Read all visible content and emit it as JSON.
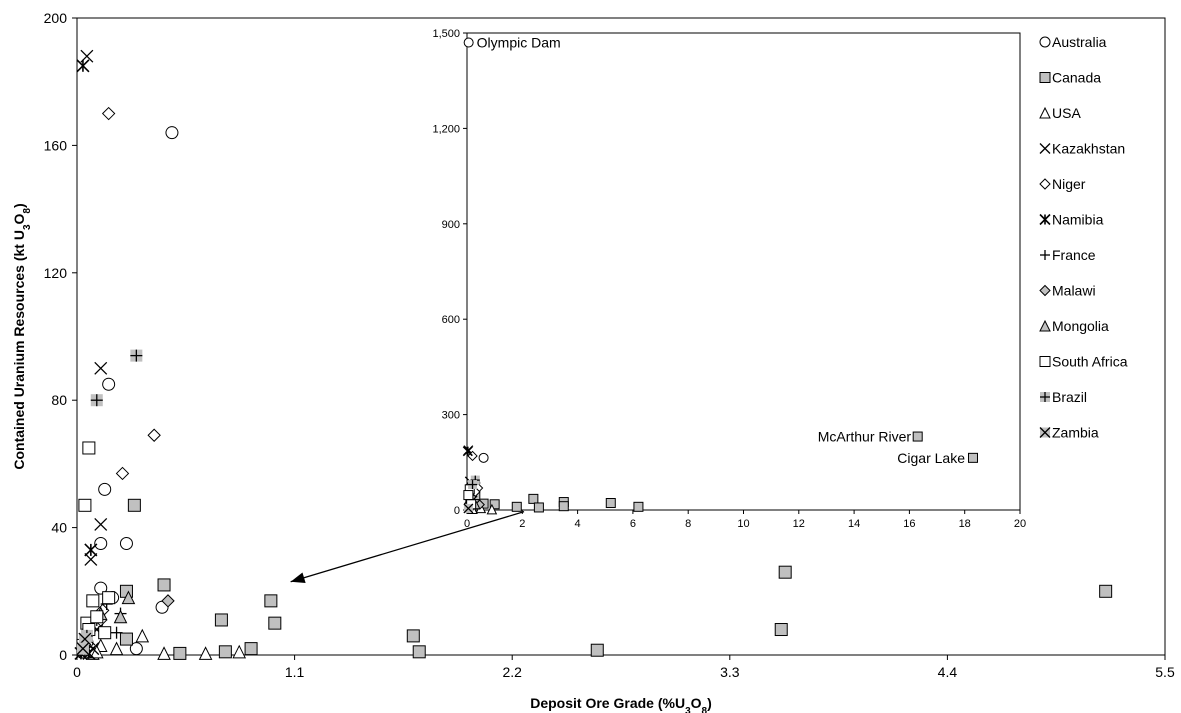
{
  "chart_data": [
    {
      "id": "main",
      "type": "scatter",
      "xlabel_parts": [
        "Deposit Ore Grade (%U",
        "3",
        "O",
        "8",
        ")"
      ],
      "ylabel_parts": [
        "Contained Uranium Resources (kt U",
        "3",
        "O",
        "8",
        ")"
      ],
      "xlim": [
        0,
        5.5
      ],
      "ylim": [
        0,
        200
      ],
      "xticks": [
        0,
        1.1,
        2.2,
        3.3,
        4.4,
        5.5
      ],
      "xtick_labels": [
        "0",
        "1.1",
        "2.2",
        "3.3",
        "4.4",
        "5.5"
      ],
      "yticks": [
        0,
        40,
        80,
        120,
        160,
        200
      ],
      "ytick_labels": [
        "0",
        "40",
        "80",
        "120",
        "160",
        "200"
      ],
      "series": [
        {
          "name": "Australia",
          "marker": "circle",
          "points": [
            [
              0.48,
              164
            ],
            [
              0.16,
              85
            ],
            [
              0.14,
              52
            ],
            [
              0.12,
              35
            ],
            [
              0.25,
              35
            ],
            [
              0.12,
              21
            ],
            [
              0.18,
              18
            ],
            [
              0.43,
              15
            ],
            [
              0.3,
              2
            ],
            [
              0.05,
              4
            ],
            [
              0.1,
              10
            ]
          ]
        },
        {
          "name": "Canada",
          "marker": "square",
          "points": [
            [
              3.58,
              26
            ],
            [
              5.2,
              20
            ],
            [
              0.29,
              47
            ],
            [
              0.44,
              22
            ],
            [
              0.25,
              20
            ],
            [
              0.98,
              17
            ],
            [
              0.73,
              11
            ],
            [
              1.0,
              10
            ],
            [
              1.7,
              6
            ],
            [
              3.56,
              8
            ],
            [
              0.25,
              5
            ],
            [
              0.52,
              0.5
            ],
            [
              0.75,
              1
            ],
            [
              0.88,
              2
            ],
            [
              1.73,
              1
            ],
            [
              2.63,
              1.5
            ]
          ]
        },
        {
          "name": "USA",
          "marker": "triangle",
          "points": [
            [
              0.33,
              6
            ],
            [
              0.44,
              0.5
            ],
            [
              0.65,
              0.5
            ],
            [
              0.82,
              1
            ],
            [
              0.12,
              3
            ],
            [
              0.2,
              2
            ],
            [
              0.05,
              1
            ],
            [
              0.08,
              0.5
            ],
            [
              0.1,
              1
            ]
          ]
        },
        {
          "name": "Kazakhstan",
          "marker": "x",
          "points": [
            [
              0.05,
              188
            ],
            [
              0.12,
              90
            ],
            [
              0.12,
              41
            ],
            [
              0.07,
              30
            ],
            [
              0.1,
              8
            ],
            [
              0.06,
              5
            ],
            [
              0.04,
              3
            ],
            [
              0.08,
              2
            ]
          ]
        },
        {
          "name": "Niger",
          "marker": "diamond",
          "points": [
            [
              0.16,
              170
            ],
            [
              0.39,
              69
            ],
            [
              0.23,
              57
            ],
            [
              0.12,
              11
            ],
            [
              0.13,
              14
            ]
          ]
        },
        {
          "name": "Namibia",
          "marker": "asterisk",
          "points": [
            [
              0.03,
              185
            ],
            [
              0.07,
              33
            ],
            [
              0.04,
              1
            ],
            [
              0.02,
              0.5
            ],
            [
              0.06,
              0.5
            ]
          ]
        },
        {
          "name": "France",
          "marker": "plus",
          "points": [
            [
              0.22,
              13
            ],
            [
              0.1,
              11
            ],
            [
              0.15,
              16
            ],
            [
              0.2,
              7
            ]
          ]
        },
        {
          "name": "Malawi",
          "marker": "diamond-filled",
          "points": [
            [
              0.46,
              17
            ]
          ]
        },
        {
          "name": "Mongolia",
          "marker": "triangle-filled",
          "points": [
            [
              0.26,
              18
            ],
            [
              0.22,
              12
            ],
            [
              0.12,
              13
            ]
          ]
        },
        {
          "name": "South Africa",
          "marker": "square-open",
          "points": [
            [
              0.06,
              65
            ],
            [
              0.04,
              47
            ],
            [
              0.08,
              17
            ],
            [
              0.16,
              18
            ],
            [
              0.05,
              10
            ],
            [
              0.1,
              12
            ],
            [
              0.03,
              3
            ],
            [
              0.06,
              8
            ],
            [
              0.14,
              7
            ]
          ]
        },
        {
          "name": "Brazil",
          "marker": "plus-square",
          "points": [
            [
              0.3,
              94
            ],
            [
              0.1,
              80
            ],
            [
              0.05,
              6
            ]
          ]
        },
        {
          "name": "Zambia",
          "marker": "x-square",
          "points": [
            [
              0.04,
              5
            ],
            [
              0.03,
              2
            ]
          ]
        }
      ],
      "annotation": {
        "type": "arrow",
        "from": [
          2.26,
          45
        ],
        "to": [
          1.08,
          23
        ]
      }
    },
    {
      "id": "inset",
      "type": "scatter",
      "xlim": [
        0,
        20
      ],
      "ylim": [
        0,
        1500
      ],
      "xticks": [
        0,
        2,
        4,
        6,
        8,
        10,
        12,
        14,
        16,
        18,
        20
      ],
      "xtick_labels": [
        "0",
        "2",
        "4",
        "6",
        "8",
        "10",
        "12",
        "14",
        "16",
        "18",
        "20"
      ],
      "yticks": [
        0,
        300,
        600,
        900,
        1200,
        1500
      ],
      "ytick_labels": [
        "0",
        "300",
        "600",
        "900",
        "1,200",
        "1,500"
      ],
      "labels": [
        {
          "text": "Olympic Dam",
          "x": 0.06,
          "y": 1470,
          "anchor": "start"
        },
        {
          "text": "McArthur River",
          "x": 16.35,
          "y": 231,
          "anchor": "end"
        },
        {
          "text": "Cigar Lake",
          "x": 18.3,
          "y": 164,
          "anchor": "end"
        }
      ],
      "series": [
        {
          "name": "Australia",
          "marker": "circle",
          "points": [
            [
              0.06,
              1470
            ],
            [
              0.6,
              164
            ],
            [
              0.3,
              85
            ],
            [
              0.2,
              52
            ]
          ]
        },
        {
          "name": "Canada",
          "marker": "square",
          "points": [
            [
              16.3,
              231
            ],
            [
              18.3,
              164
            ],
            [
              2.4,
              35
            ],
            [
              3.5,
              25
            ],
            [
              5.2,
              22
            ],
            [
              6.2,
              10
            ],
            [
              1.0,
              18
            ],
            [
              0.6,
              20
            ],
            [
              1.8,
              10
            ],
            [
              2.6,
              8
            ],
            [
              3.5,
              12
            ],
            [
              0.3,
              47
            ]
          ]
        },
        {
          "name": "USA",
          "marker": "triangle",
          "points": [
            [
              0.5,
              6
            ],
            [
              0.9,
              2
            ],
            [
              0.2,
              3
            ]
          ]
        },
        {
          "name": "Kazakhstan",
          "marker": "x",
          "points": [
            [
              0.05,
              188
            ],
            [
              0.1,
              90
            ],
            [
              0.1,
              41
            ],
            [
              0.2,
              30
            ]
          ]
        },
        {
          "name": "Niger",
          "marker": "diamond",
          "points": [
            [
              0.2,
              170
            ],
            [
              0.4,
              69
            ],
            [
              0.3,
              57
            ]
          ]
        },
        {
          "name": "Namibia",
          "marker": "asterisk",
          "points": [
            [
              0.03,
              185
            ],
            [
              0.07,
              33
            ]
          ]
        },
        {
          "name": "France",
          "marker": "plus",
          "points": [
            [
              0.22,
              13
            ],
            [
              0.4,
              16
            ]
          ]
        },
        {
          "name": "Malawi",
          "marker": "diamond-filled",
          "points": [
            [
              0.46,
              17
            ]
          ]
        },
        {
          "name": "Mongolia",
          "marker": "triangle-filled",
          "points": [
            [
              0.3,
              18
            ]
          ]
        },
        {
          "name": "South Africa",
          "marker": "square-open",
          "points": [
            [
              0.1,
              65
            ],
            [
              0.05,
              47
            ],
            [
              0.15,
              18
            ]
          ]
        },
        {
          "name": "Brazil",
          "marker": "plus-square",
          "points": [
            [
              0.3,
              94
            ],
            [
              0.2,
              80
            ]
          ]
        },
        {
          "name": "Zambia",
          "marker": "x-square",
          "points": [
            [
              0.05,
              5
            ]
          ]
        }
      ]
    }
  ],
  "legend": {
    "placement": "right",
    "items": [
      {
        "label": "Australia",
        "marker": "circle"
      },
      {
        "label": "Canada",
        "marker": "square"
      },
      {
        "label": "USA",
        "marker": "triangle"
      },
      {
        "label": "Kazakhstan",
        "marker": "x"
      },
      {
        "label": "Niger",
        "marker": "diamond"
      },
      {
        "label": "Namibia",
        "marker": "asterisk"
      },
      {
        "label": "France",
        "marker": "plus"
      },
      {
        "label": "Malawi",
        "marker": "diamond-filled"
      },
      {
        "label": "Mongolia",
        "marker": "triangle-filled"
      },
      {
        "label": "South Africa",
        "marker": "square-open"
      },
      {
        "label": "Brazil",
        "marker": "plus-square"
      },
      {
        "label": "Zambia",
        "marker": "x-square"
      }
    ]
  },
  "colors": {
    "fill_gray": "#c0c0c0",
    "stroke": "#000000",
    "background": "#ffffff"
  }
}
